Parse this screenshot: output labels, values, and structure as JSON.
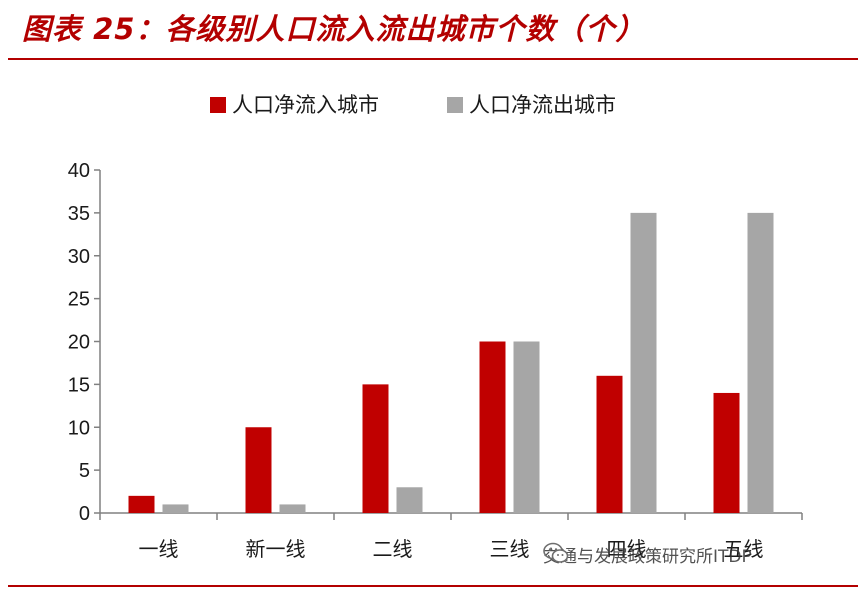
{
  "title": "图表 25：各级别人口流入流出城市个数（个）",
  "watermark": {
    "text": "交通与发展政策研究所ITDP",
    "icon": "wechat-icon"
  },
  "colors": {
    "accent": "#b30000",
    "inflow": "#c00000",
    "outflow": "#a6a6a6",
    "axis": "#808080"
  },
  "chart_data": {
    "type": "bar",
    "title": "图表 25：各级别人口流入流出城市个数（个）",
    "categories": [
      "一线",
      "新一线",
      "二线",
      "三线",
      "四线",
      "五线"
    ],
    "series": [
      {
        "name": "人口净流入城市",
        "values": [
          2,
          10,
          15,
          20,
          16,
          14
        ]
      },
      {
        "name": "人口净流出城市",
        "values": [
          1,
          1,
          3,
          20,
          35,
          35
        ]
      }
    ],
    "xlabel": "",
    "ylabel": "",
    "ylim": [
      0,
      40
    ],
    "yticks": [
      0,
      5,
      10,
      15,
      20,
      25,
      30,
      35,
      40
    ],
    "grid": false,
    "legend": "top-center"
  }
}
